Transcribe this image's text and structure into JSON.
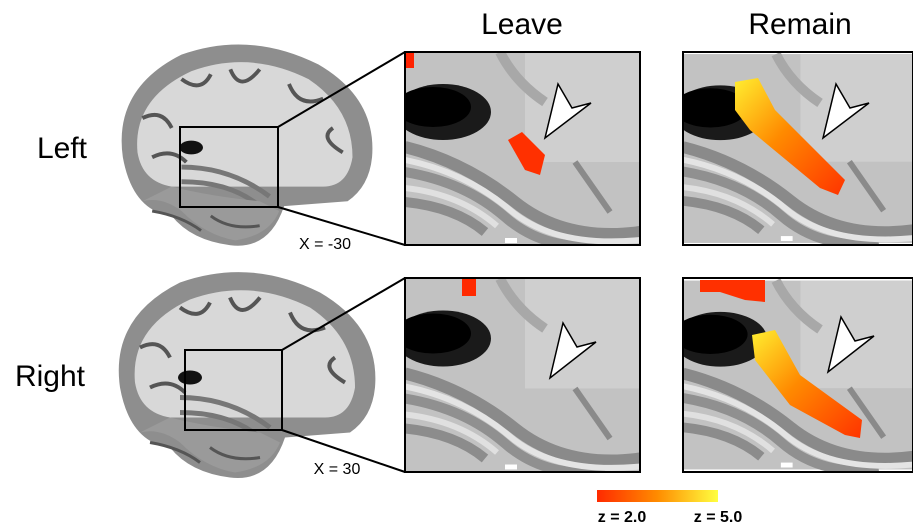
{
  "columns": [
    "Leave",
    "Remain"
  ],
  "rows": [
    {
      "label": "Left",
      "coordinate": "X = -30"
    },
    {
      "label": "Right",
      "coordinate": "X = 30"
    }
  ],
  "colorbar": {
    "min_label": "z = 2.0",
    "max_label": "z = 5.0"
  }
}
